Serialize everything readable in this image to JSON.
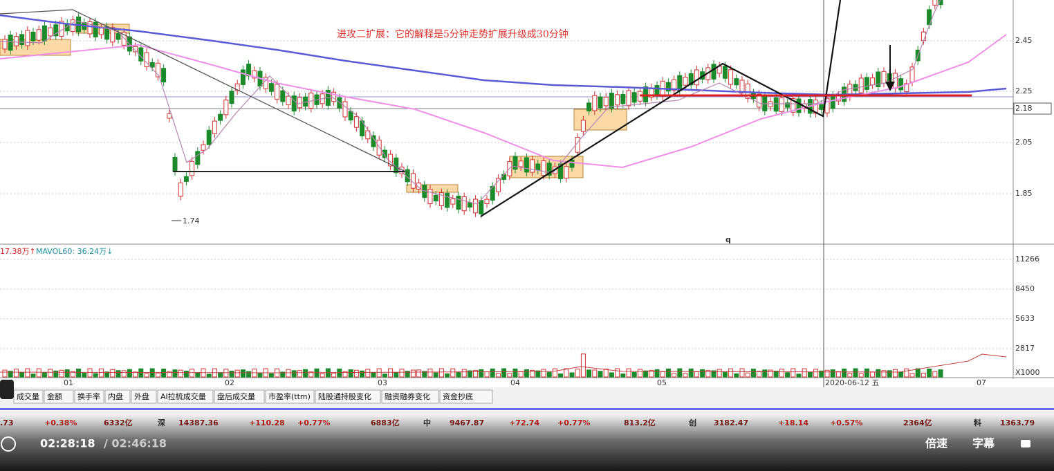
{
  "annotation": "进攻二扩展：它的解释是5分钟走势扩展升级成30分钟",
  "price_axis": [
    "2.45",
    "2.25",
    "2.18",
    "2.05",
    "1.85"
  ],
  "low_label": "1.74",
  "marker_q": "q",
  "volume_legend": [
    "17.38万↑",
    "MAVOL60: 36.24万↓"
  ],
  "volume_axis": [
    "11266",
    "8450",
    "5633",
    "2817",
    "X1000"
  ],
  "date_axis": [
    "01",
    "02",
    "03",
    "04",
    "05",
    "2020-06-12 五",
    "07"
  ],
  "tabs": [
    "成交量",
    "金额",
    "换手率",
    "内盘",
    "外盘",
    "AI拉梳成交量",
    "盘后成交量",
    "市盈率(ttm)",
    "陆股通持股变化",
    "融资融券变化",
    "资金抄底"
  ],
  "ticker": [
    ".73",
    "+0.38%",
    "6332亿",
    "深",
    "14387.36",
    "+110.28",
    "+0.77%",
    "6883亿",
    "中",
    "9467.87",
    "+72.74",
    "+0.77%",
    "813.2亿",
    "创",
    "3182.47",
    "+18.14",
    "+0.57%",
    "2364亿",
    "料",
    "1363.79"
  ],
  "player": {
    "time": "02:28:18",
    "duration": "/ 02:46:18",
    "speed": "倍速",
    "subtitle": "字幕"
  }
}
